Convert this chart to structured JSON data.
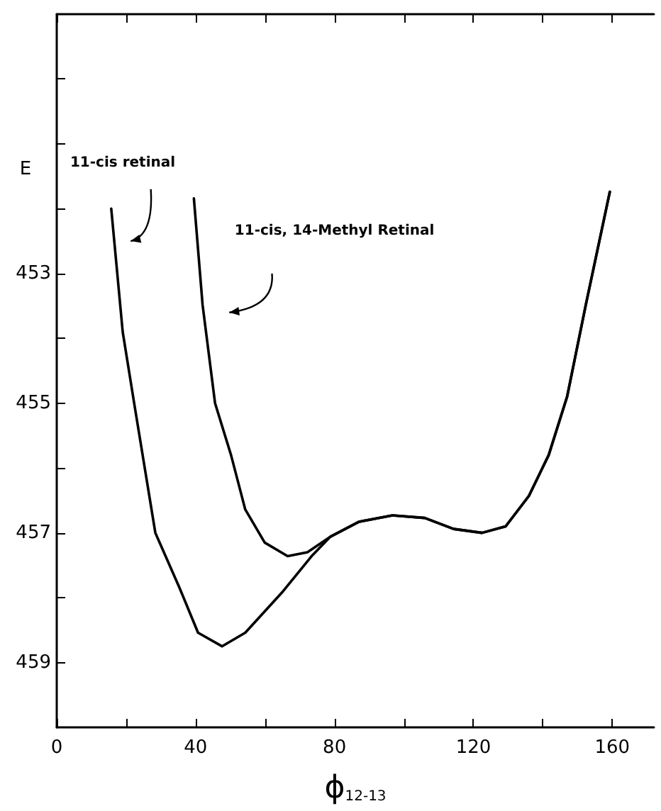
{
  "chart_data": {
    "type": "line",
    "xlabel": "ϕ$_{12-13}$",
    "ylabel": "E",
    "xlim": [
      0,
      172
    ],
    "ylim": [
      460,
      449
    ],
    "xticks": [
      0,
      {
        "value": 20,
        "label": null
      },
      40,
      {
        "value": 60,
        "label": null
      },
      80,
      {
        "value": 100,
        "label": null
      },
      120,
      {
        "value": 140,
        "label": null
      },
      160
    ],
    "yticks": [
      {
        "value": 450,
        "label": null
      },
      {
        "value": 451,
        "label": null
      },
      {
        "value": 452,
        "label": null
      },
      453,
      {
        "value": 454,
        "label": null
      },
      455,
      {
        "value": 456,
        "label": null
      },
      457,
      {
        "value": 458,
        "label": null
      },
      459
    ],
    "marker": "none",
    "line_style": "solid",
    "grid": false,
    "legend": false,
    "series": [
      {
        "name": "11-cis retinal",
        "color": "#000000",
        "x": [
          15.7,
          19,
          22.3,
          28.4,
          35.3,
          40.7,
          47.6,
          54.3,
          65.2,
          73.4,
          78.8,
          87,
          96.7,
          106,
          114.3,
          122.5,
          129.3,
          136,
          141.7,
          147,
          152.4,
          159.3
        ],
        "values": [
          452.0,
          453.9,
          455.0,
          457.0,
          457.84,
          458.54,
          458.75,
          458.54,
          457.9,
          457.36,
          457.06,
          456.83,
          456.73,
          456.77,
          456.94,
          457.0,
          456.9,
          456.43,
          455.8,
          454.9,
          453.48,
          451.74
        ]
      },
      {
        "name": "11-cis, 14-Methyl Retinal",
        "color": "#000000",
        "x": [
          39.5,
          42,
          45.6,
          50.2,
          54.3,
          59.9,
          66.5,
          72.2,
          78.8,
          87,
          96.7,
          106,
          114.3,
          122.5,
          129.3,
          136,
          141.7,
          147,
          152.4,
          159.3
        ],
        "values": [
          451.84,
          453.48,
          455.0,
          455.8,
          456.64,
          457.15,
          457.36,
          457.3,
          457.06,
          456.83,
          456.73,
          456.77,
          456.94,
          457.0,
          456.9,
          456.43,
          455.8,
          454.9,
          453.48,
          451.74
        ]
      }
    ]
  }
}
